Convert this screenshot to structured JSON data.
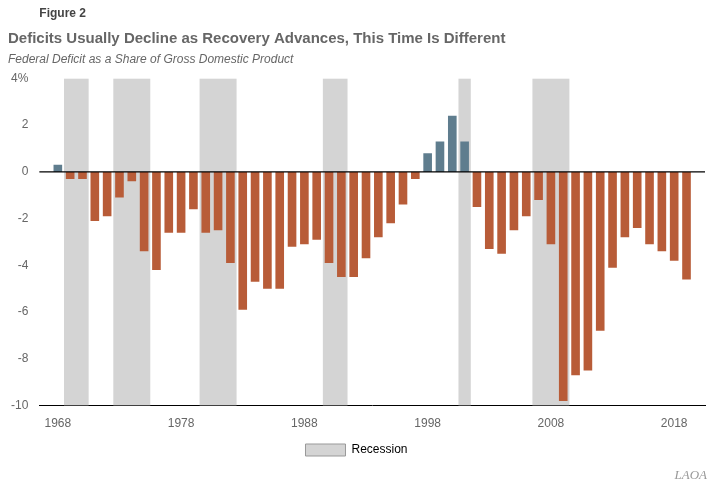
{
  "chart_data": {
    "type": "bar",
    "title": "Deficits Usually Decline as Recovery Advances, This Time Is Different",
    "subtitle": "Federal Deficit as a Share of Gross Domestic Product",
    "annotations": [
      "Figure 2",
      "LAOA"
    ],
    "x": [
      1968,
      1969,
      1970,
      1971,
      1972,
      1973,
      1974,
      1975,
      1976,
      1977,
      1978,
      1979,
      1980,
      1981,
      1982,
      1983,
      1984,
      1985,
      1986,
      1987,
      1988,
      1989,
      1990,
      1991,
      1992,
      1993,
      1994,
      1995,
      1996,
      1997,
      1998,
      1999,
      2000,
      2001,
      2002,
      2003,
      2004,
      2005,
      2006,
      2007,
      2008,
      2009,
      2010,
      2011,
      2012,
      2013,
      2014,
      2015,
      2016,
      2017,
      2018,
      2019
    ],
    "values": [
      0.3,
      -0.3,
      -0.3,
      -2.1,
      -1.9,
      -1.1,
      -0.4,
      -3.4,
      -4.2,
      -2.6,
      -2.6,
      -1.6,
      -2.6,
      -2.5,
      -3.9,
      -5.9,
      -4.7,
      -5.0,
      -5.0,
      -3.2,
      -3.1,
      -2.9,
      -3.9,
      -4.5,
      -4.5,
      -3.7,
      -2.8,
      -2.2,
      -1.4,
      -0.3,
      0.8,
      1.3,
      2.4,
      1.3,
      -1.5,
      -3.3,
      -3.5,
      -2.5,
      -1.9,
      -1.2,
      -3.1,
      -9.8,
      -8.7,
      -8.5,
      -6.8,
      -4.1,
      -2.8,
      -2.4,
      -3.1,
      -3.4,
      -3.8,
      -4.6
    ],
    "colors": [
      "#5f7d8e",
      "#b85c38",
      "#b85c38",
      "#b85c38",
      "#b85c38",
      "#b85c38",
      "#b85c38",
      "#b85c38",
      "#b85c38",
      "#b85c38",
      "#b85c38",
      "#b85c38",
      "#b85c38",
      "#b85c38",
      "#b85c38",
      "#b85c38",
      "#b85c38",
      "#b85c38",
      "#b85c38",
      "#b85c38",
      "#b85c38",
      "#b85c38",
      "#b85c38",
      "#b85c38",
      "#b85c38",
      "#b85c38",
      "#b85c38",
      "#b85c38",
      "#b85c38",
      "#b85c38",
      "#5f7d8e",
      "#5f7d8e",
      "#5f7d8e",
      "#5f7d8e",
      "#b85c38",
      "#b85c38",
      "#b85c38",
      "#b85c38",
      "#b85c38",
      "#b85c38",
      "#b85c38",
      "#b85c38",
      "#b85c38",
      "#b85c38",
      "#b85c38",
      "#b85c38",
      "#b85c38",
      "#b85c38",
      "#b85c38",
      "#b85c38",
      "#b85c38",
      "#b85c38"
    ],
    "recession": {
      "name": "Recession",
      "color": "#d4d4d4",
      "periods": [
        [
          1969,
          1970
        ],
        [
          1973,
          1975
        ],
        [
          1980,
          1982
        ],
        [
          1990,
          1991
        ],
        [
          2001,
          2001
        ],
        [
          2007,
          2009
        ]
      ]
    },
    "hline_y": 0,
    "xlim": [
      1966.5,
      2020.5
    ],
    "xticks": [
      1968,
      1978,
      1988,
      1998,
      2008,
      2018
    ],
    "ylim": [
      -10,
      4
    ],
    "yticks": [
      -10,
      -8,
      -6,
      -4,
      -2,
      0,
      2,
      {
        "value": 4,
        "label": "4%"
      }
    ],
    "grid": false
  }
}
